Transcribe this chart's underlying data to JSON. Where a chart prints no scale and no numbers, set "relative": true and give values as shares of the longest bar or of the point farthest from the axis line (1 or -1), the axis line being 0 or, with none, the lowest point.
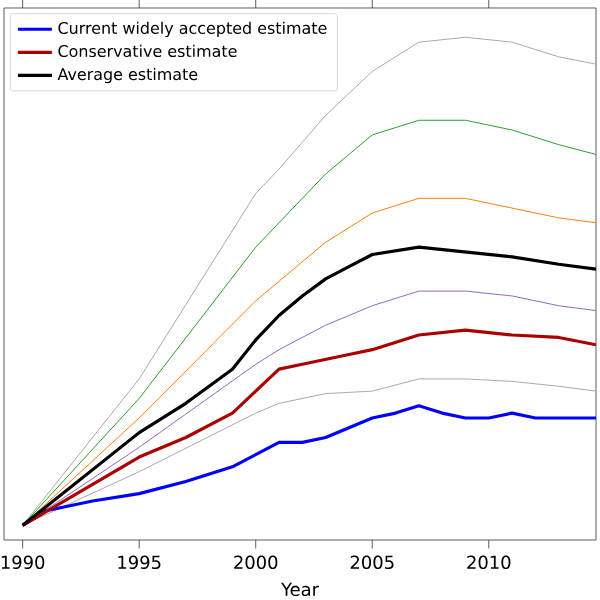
{
  "chart_data": {
    "type": "line",
    "relative": true,
    "xlabel": "Year",
    "xlim": [
      1989.2,
      2014.6
    ],
    "xticks": [
      1990,
      1995,
      2000,
      2005,
      2010
    ],
    "legend": "top left",
    "grid": false,
    "marker": "none",
    "line_style": "solid",
    "series": [
      {
        "color": "#aaaaaa",
        "x": [
          1990,
          1995,
          2000,
          2001,
          2003,
          2005,
          2007,
          2009,
          2011,
          2013,
          2014.6
        ],
        "values": [
          0,
          0.3,
          0.68,
          0.73,
          0.84,
          0.93,
          0.99,
          1.0,
          0.99,
          0.96,
          0.945
        ]
      },
      {
        "color": "#2ca02c",
        "x": [
          1990,
          1995,
          2000,
          2001,
          2003,
          2005,
          2007,
          2009,
          2011,
          2013,
          2014.6
        ],
        "values": [
          0,
          0.26,
          0.57,
          0.62,
          0.72,
          0.8,
          0.83,
          0.83,
          0.81,
          0.78,
          0.76
        ]
      },
      {
        "color": "#ff7f0e",
        "x": [
          1990,
          1995,
          2000,
          2001,
          2003,
          2005,
          2007,
          2009,
          2011,
          2013,
          2014.6
        ],
        "values": [
          0,
          0.22,
          0.46,
          0.5,
          0.58,
          0.64,
          0.67,
          0.67,
          0.65,
          0.63,
          0.62
        ]
      },
      {
        "color": "#9467bd",
        "x": [
          1990,
          1995,
          2000,
          2001,
          2003,
          2005,
          2007,
          2009,
          2011,
          2013,
          2014.6
        ],
        "values": [
          0,
          0.16,
          0.33,
          0.36,
          0.41,
          0.45,
          0.48,
          0.48,
          0.47,
          0.45,
          0.44
        ]
      },
      {
        "color": "#aaaaaa",
        "x": [
          1990,
          1995,
          2000,
          2001,
          2003,
          2005,
          2007,
          2009,
          2011,
          2013,
          2014.6
        ],
        "values": [
          0,
          0.11,
          0.23,
          0.25,
          0.27,
          0.275,
          0.3,
          0.3,
          0.295,
          0.285,
          0.275
        ]
      },
      {
        "name": "Current widely accepted estimate",
        "color": "#0000ff",
        "x": [
          1990,
          1991,
          1993,
          1995,
          1997,
          1999,
          2000,
          2001,
          2002,
          2003,
          2004,
          2005,
          2006,
          2007,
          2008,
          2009,
          2010,
          2011,
          2012,
          2013,
          2014.6
        ],
        "values": [
          0,
          0.03,
          0.05,
          0.065,
          0.09,
          0.12,
          0.145,
          0.17,
          0.17,
          0.18,
          0.2,
          0.22,
          0.23,
          0.245,
          0.23,
          0.22,
          0.22,
          0.23,
          0.22,
          0.22,
          0.22
        ]
      },
      {
        "name": "Conservative estimate",
        "color": "#aa0000",
        "x": [
          1990,
          1995,
          1997,
          1999,
          2000,
          2001,
          2002,
          2004,
          2005,
          2007,
          2009,
          2011,
          2013,
          2014.6
        ],
        "values": [
          0,
          0.14,
          0.18,
          0.23,
          0.275,
          0.32,
          0.33,
          0.35,
          0.36,
          0.39,
          0.4,
          0.39,
          0.385,
          0.37
        ]
      },
      {
        "name": "Average estimate",
        "color": "#000000",
        "x": [
          1990,
          1995,
          1997,
          1999,
          2000,
          2001,
          2002,
          2003,
          2004,
          2005,
          2007,
          2009,
          2011,
          2013,
          2014.6
        ],
        "values": [
          0,
          0.19,
          0.25,
          0.32,
          0.38,
          0.43,
          0.47,
          0.505,
          0.53,
          0.555,
          0.57,
          0.56,
          0.55,
          0.535,
          0.525
        ]
      }
    ]
  }
}
